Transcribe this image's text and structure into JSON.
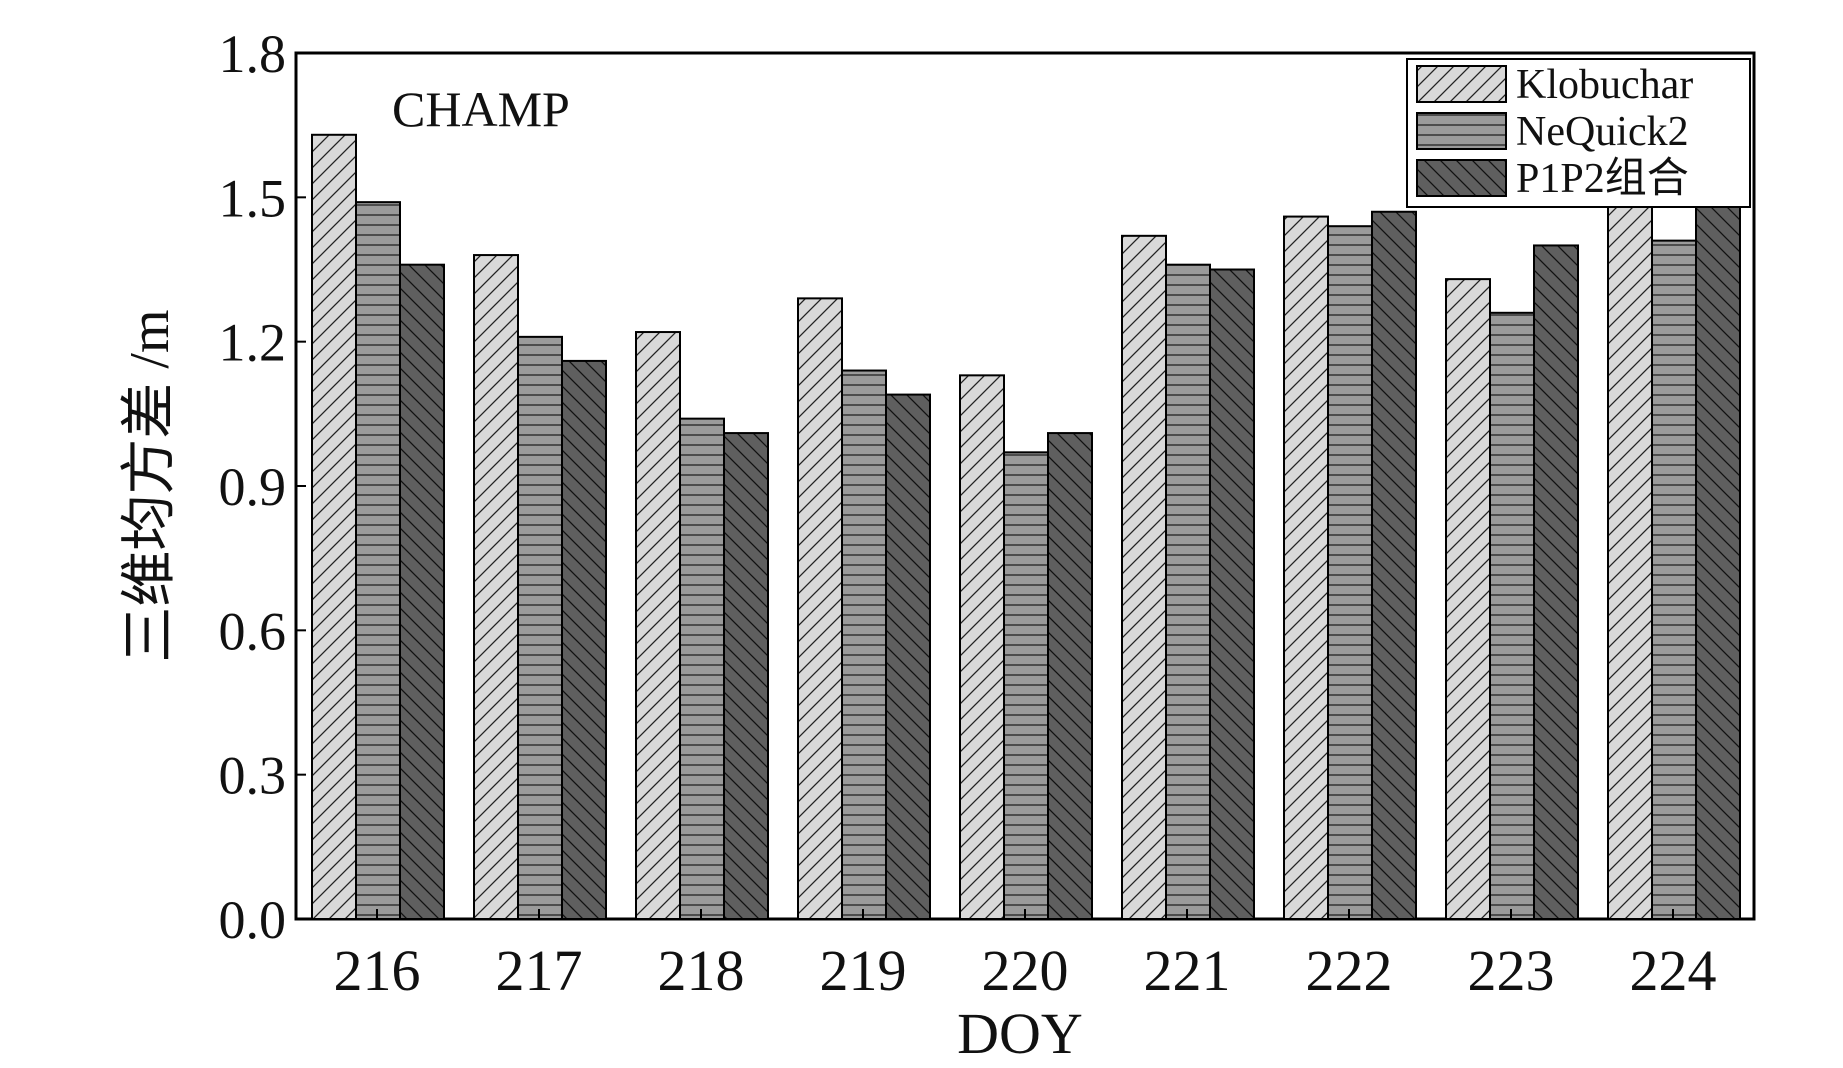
{
  "chart_data": {
    "type": "bar",
    "annotation": "CHAMP",
    "xlabel": "DOY",
    "ylabel": "三维均方差 /m",
    "categories": [
      "216",
      "217",
      "218",
      "219",
      "220",
      "221",
      "222",
      "223",
      "224"
    ],
    "ylim": [
      0.0,
      1.8
    ],
    "yticks": [
      "0.0",
      "0.3",
      "0.6",
      "0.9",
      "1.2",
      "1.5",
      "1.8"
    ],
    "legend_position": "top-right",
    "grid": false,
    "series": [
      {
        "name": "Klobuchar",
        "values": [
          1.63,
          1.38,
          1.22,
          1.29,
          1.13,
          1.42,
          1.46,
          1.33,
          1.5
        ],
        "fill": "#d9d9d9",
        "pattern": "forward-diagonal-hatch"
      },
      {
        "name": "NeQuick2",
        "values": [
          1.49,
          1.21,
          1.04,
          1.14,
          0.97,
          1.36,
          1.44,
          1.26,
          1.41
        ],
        "fill": "#9a9a9a",
        "pattern": "horizontal-lines"
      },
      {
        "name": "P1P2组合",
        "values": [
          1.36,
          1.16,
          1.01,
          1.09,
          1.01,
          1.35,
          1.47,
          1.4,
          1.5
        ],
        "fill": "#5f5f5f",
        "pattern": "back-diagonal-hatch"
      }
    ]
  }
}
